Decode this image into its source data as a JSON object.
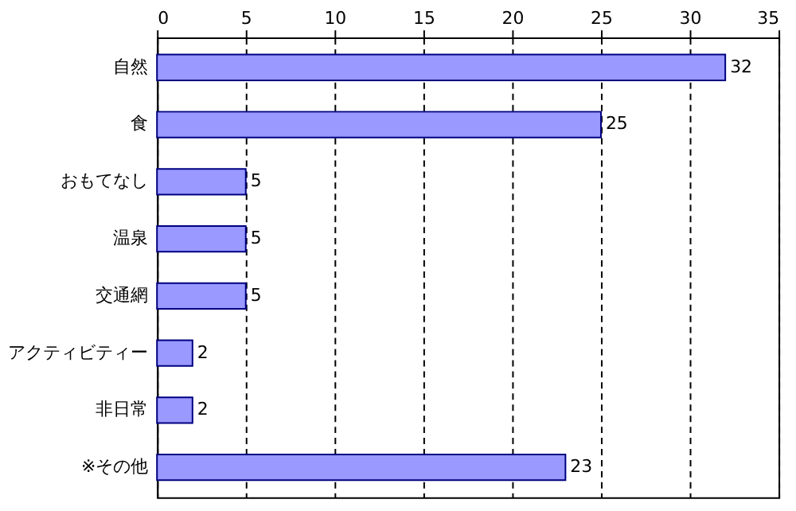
{
  "chart_data": {
    "type": "bar",
    "orientation": "horizontal",
    "categories": [
      "自然",
      "食",
      "おもてなし",
      "温泉",
      "交通網",
      "アクティビティー",
      "非日常",
      "※その他"
    ],
    "values": [
      32,
      25,
      5,
      5,
      5,
      2,
      2,
      23
    ],
    "color": "#9999ff",
    "xlim": [
      0,
      35
    ],
    "xticks": [
      0,
      5,
      10,
      15,
      20,
      25,
      30,
      35
    ],
    "grid": "x",
    "data_labels": true
  }
}
